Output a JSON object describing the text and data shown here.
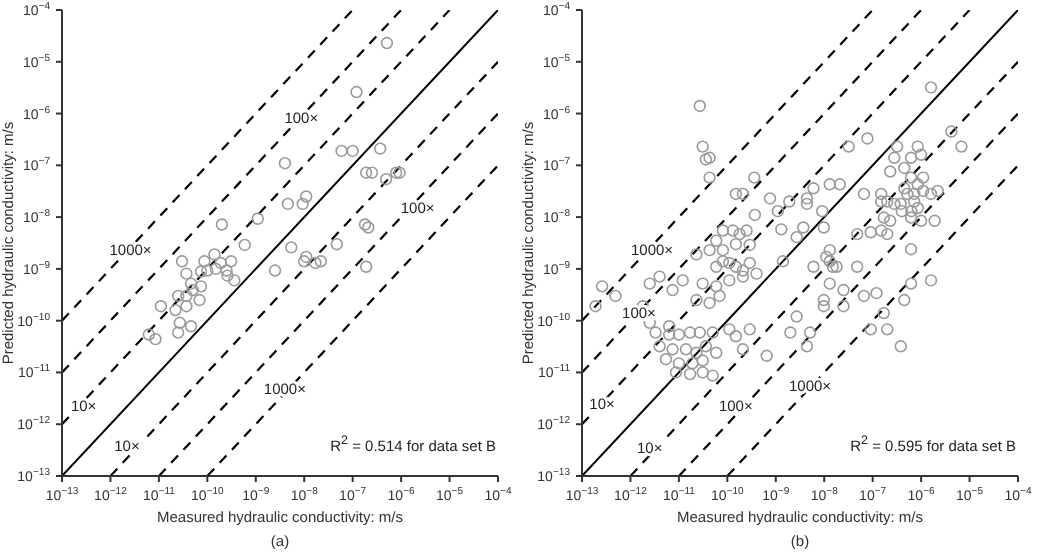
{
  "chart_data": [
    {
      "type": "scatter",
      "subtitle": "(a)",
      "xlabel": "Measured hydraulic conductivity: m/s",
      "ylabel": "Predicted hydraulic conductivity: m/s",
      "log": "xy",
      "marker": "circle",
      "xlim": [
        1e-13,
        0.0001
      ],
      "ylim": [
        1e-13,
        0.0001
      ],
      "xticks": [
        {
          "value": 1e-13,
          "label": "10$^{−13}$"
        },
        {
          "value": 1e-12,
          "label": "10$^{−12}$"
        },
        {
          "value": 1e-11,
          "label": "10$^{−11}$"
        },
        {
          "value": 1e-10,
          "label": "10$^{−10}$"
        },
        {
          "value": 1e-09,
          "label": "10$^{−9}$"
        },
        {
          "value": 1e-08,
          "label": "10$^{−8}$"
        },
        {
          "value": 1e-07,
          "label": "10$^{−7}$"
        },
        {
          "value": 1e-06,
          "label": "10$^{−6}$"
        },
        {
          "value": 1e-05,
          "label": "10$^{−5}$"
        },
        {
          "value": 0.0001,
          "label": "10$^{−4}$"
        }
      ],
      "yticks": [
        {
          "value": 1e-13,
          "label": "10$^{−13}$"
        },
        {
          "value": 1e-12,
          "label": "10$^{−12}$"
        },
        {
          "value": 1e-11,
          "label": "10$^{−11}$"
        },
        {
          "value": 1e-10,
          "label": "10$^{−10}$"
        },
        {
          "value": 1e-09,
          "label": "10$^{−9}$"
        },
        {
          "value": 1e-08,
          "label": "10$^{−8}$"
        },
        {
          "value": 1e-07,
          "label": "10$^{−7}$"
        },
        {
          "value": 1e-06,
          "label": "10$^{−6}$"
        },
        {
          "value": 1e-05,
          "label": "10$^{−5}$"
        },
        {
          "value": 0.0001,
          "label": "10$^{−4}$"
        }
      ],
      "series": [
        {
          "type": "scatter",
          "color": "#9a9a9a",
          "x": [
            5.1e-07,
            1.2e-07,
            5.9e-08,
            1e-07,
            3.7e-07,
            4e-09,
            1.9e-07,
            2.5e-07,
            4.9e-07,
            7.9e-07,
            9.3e-07,
            1.1e-08,
            4.6e-09,
            9.3e-09,
            1.1e-09,
            2e-10,
            1.8e-07,
            2.1e-07,
            4.7e-08,
            5.9e-10,
            5.4e-09,
            3e-11,
            8.7e-11,
            1.4e-10,
            1.1e-08,
            1.7e-08,
            2.2e-08,
            1.9e-07,
            2.5e-09,
            1e-10,
            2.5e-10,
            1.9e-10,
            3.1e-10,
            1e-08,
            3.7e-11,
            7.4e-11,
            1.5e-10,
            2.6e-10,
            3.6e-10,
            5e-11,
            3.7e-11,
            7.4e-11,
            4.6e-11,
            2.5e-11,
            1.1e-11,
            2.2e-11,
            3.7e-11,
            6.9e-11,
            2.7e-11,
            4.6e-11,
            2.5e-11,
            6.2e-12,
            8.5e-12
          ],
          "values": [
            2.3e-05,
            2.6e-06,
            1.9e-07,
            1.9e-07,
            2.1e-07,
            1.1e-07,
            7.2e-08,
            7.2e-08,
            5.4e-08,
            7.2e-08,
            7.2e-08,
            2.5e-08,
            1.8e-08,
            1.8e-08,
            9.3e-09,
            7.2e-09,
            7.2e-09,
            6.3e-09,
            3e-09,
            2.9e-09,
            2.6e-09,
            1.4e-09,
            1.4e-09,
            1.9e-09,
            1.7e-09,
            1.3e-09,
            1.4e-09,
            1.1e-09,
            9.3e-10,
            9.3e-10,
            9.3e-10,
            1.3e-09,
            1.4e-09,
            1.4e-09,
            8.1e-10,
            8.9e-10,
            1e-09,
            7.4e-10,
            6e-10,
            3.9e-10,
            3e-10,
            4.6e-10,
            5.2e-10,
            3e-10,
            1.9e-10,
            1.6e-10,
            1.9e-10,
            2.5e-10,
            9.1e-11,
            7.8e-11,
            5.9e-11,
            5.4e-11,
            4.4e-11
          ]
        },
        {
          "type": "line",
          "color": "#000000",
          "line_style": "solid",
          "marker": "none",
          "x": [
            1e-13,
            0.0001
          ],
          "values": [
            1e-13,
            0.0001
          ]
        },
        {
          "type": "line",
          "color": "#000000",
          "line_style": "dashed",
          "marker": "none",
          "x": [
            1e-13,
            1e-05
          ],
          "values": [
            1e-12,
            0.0001
          ]
        },
        {
          "type": "line",
          "color": "#000000",
          "line_style": "dashed",
          "marker": "none",
          "x": [
            1e-13,
            1e-06
          ],
          "values": [
            1e-11,
            0.0001
          ]
        },
        {
          "type": "line",
          "color": "#000000",
          "line_style": "dashed",
          "marker": "none",
          "x": [
            1e-13,
            1e-07
          ],
          "values": [
            1e-10,
            0.0001
          ]
        },
        {
          "type": "line",
          "color": "#000000",
          "line_style": "dashed",
          "marker": "none",
          "x": [
            1e-12,
            0.0001
          ],
          "values": [
            1e-13,
            1e-05
          ]
        },
        {
          "type": "line",
          "color": "#000000",
          "line_style": "dashed",
          "marker": "none",
          "x": [
            1e-11,
            0.0001
          ],
          "values": [
            1e-13,
            1e-06
          ]
        },
        {
          "type": "line",
          "color": "#000000",
          "line_style": "dashed",
          "marker": "none",
          "x": [
            1e-10,
            0.0001
          ],
          "values": [
            1e-13,
            1e-07
          ]
        }
      ],
      "annotations": [
        {
          "text": "100×",
          "x": 8.7e-09,
          "y": 8.5e-07
        },
        {
          "text": "100×",
          "x": 2.2e-06,
          "y": 1.5e-08
        },
        {
          "text": "1000×",
          "x": 2.6e-12,
          "y": 2.3e-09
        },
        {
          "text": "10×",
          "x": 2.8e-13,
          "y": 2.3e-12
        },
        {
          "text": "1000×",
          "x": 4e-09,
          "y": 4.8e-12
        },
        {
          "text": "10×",
          "x": 2.2e-12,
          "y": 3.8e-13
        },
        "R$^{2}$ = 0.514 for data set B"
      ]
    },
    {
      "type": "scatter",
      "subtitle": "(b)",
      "xlabel": "Measured hydraulic conductivity: m/s",
      "ylabel": "Predicted hydraulic conductivity: m/s",
      "log": "xy",
      "marker": "circle",
      "xlim": [
        1e-13,
        0.0001
      ],
      "ylim": [
        1e-13,
        0.0001
      ],
      "xticks": [
        {
          "value": 1e-13,
          "label": "10$^{−13}$"
        },
        {
          "value": 1e-12,
          "label": "10$^{−12}$"
        },
        {
          "value": 1e-11,
          "label": "10$^{−11}$"
        },
        {
          "value": 1e-10,
          "label": "10$^{−10}$"
        },
        {
          "value": 1e-09,
          "label": "10$^{−9}$"
        },
        {
          "value": 1e-08,
          "label": "10$^{−8}$"
        },
        {
          "value": 1e-07,
          "label": "10$^{−7}$"
        },
        {
          "value": 1e-06,
          "label": "10$^{−6}$"
        },
        {
          "value": 1e-05,
          "label": "10$^{−5}$"
        },
        {
          "value": 0.0001,
          "label": "10$^{−4}$"
        }
      ],
      "yticks": [
        {
          "value": 1e-13,
          "label": "10$^{−13}$"
        },
        {
          "value": 1e-12,
          "label": "10$^{−12}$"
        },
        {
          "value": 1e-11,
          "label": "10$^{−11}$"
        },
        {
          "value": 1e-10,
          "label": "10$^{−10}$"
        },
        {
          "value": 1e-09,
          "label": "10$^{−9}$"
        },
        {
          "value": 1e-08,
          "label": "10$^{−8}$"
        },
        {
          "value": 1e-07,
          "label": "10$^{−7}$"
        },
        {
          "value": 1e-06,
          "label": "10$^{−6}$"
        },
        {
          "value": 1e-05,
          "label": "10$^{−5}$"
        },
        {
          "value": 0.0001,
          "label": "10$^{−4}$"
        }
      ],
      "series": [
        {
          "type": "scatter",
          "color": "#9a9a9a",
          "x": [
            2.7e-11,
            3.1e-11,
            4.3e-11,
            3.6e-11,
            4.3e-11,
            1.6e-06,
            4.2e-06,
            6.8e-06,
            3.2e-07,
            8.5e-07,
            7.8e-08,
            3.2e-08,
            2.8e-07,
            6.2e-07,
            1e-06,
            2.3e-07,
            4.5e-07,
            1.1e-06,
            6.2e-07,
            8.5e-07,
            4.5e-07,
            5.2e-07,
            7.2e-07,
            1.1e-06,
            1.6e-06,
            2.2e-06,
            7.2e-07,
            8.5e-07,
            3.8e-07,
            2.8e-07,
            1.5e-07,
            2e-07,
            6.6e-08,
            1.5e-07,
            1.3e-08,
            2.1e-08,
            6e-09,
            4.4e-09,
            4.4e-09,
            1.9e-09,
            1.1e-09,
            7.6e-10,
            9.1e-09,
            3.6e-10,
            1.5e-10,
            2.1e-10,
            3.7e-10,
            1.3e-09,
            3.7e-09,
            9.8e-09,
            4.8e-08,
            9.1e-08,
            1.5e-07,
            2e-07,
            1.7e-07,
            2.3e-07,
            6.2e-07,
            1e-06,
            1.9e-06,
            4e-07,
            6.3e-07,
            8.1e-11,
            1.3e-10,
            1.8e-10,
            2.5e-10,
            5.9e-11,
            1.5e-10,
            2.9e-10,
            2.7e-09,
            2.3e-11,
            4.3e-11,
            8.1e-11,
            6.2e-07,
            1.3e-08,
            1.1e-08,
            6e-09,
            1.5e-08,
            5.9e-11,
            1.1e-10,
            2.1e-10,
            8.1e-11,
            1.5e-10,
            2.9e-10,
            4e-10,
            2.1e-10,
            1.1e-10,
            1.4e-09,
            1.3e-08,
            1.8e-08,
            4.8e-08,
            1.3e-08,
            2.5e-08,
            6.6e-08,
            1.2e-07,
            4.5e-07,
            1.6e-06,
            6.2e-07,
            9.8e-09,
            9.8e-09,
            2.5e-08,
            2.7e-09,
            2e-09,
            5.1e-09,
            4.4e-09,
            6.5e-10,
            1.7e-07,
            2e-07,
            9.1e-08,
            3.8e-07,
            1.9e-13,
            2.6e-13,
            4.9e-13,
            1.8e-12,
            2.5e-12,
            4e-12,
            7.4e-12,
            1.2e-11,
            2.3e-11,
            4.3e-11,
            6.9e-11,
            3.1e-11,
            5.9e-11,
            6.3e-12,
            1e-11,
            1.7e-11,
            2.7e-11,
            5e-11,
            4e-12,
            7.4e-12,
            1.4e-11,
            2.3e-11,
            3.6e-11,
            5.9e-11,
            5.4e-12,
            1e-11,
            1.9e-11,
            3.1e-11,
            8.7e-12,
            1.7e-11,
            3.1e-11,
            5e-11,
            6.3e-12,
            1.5e-10,
            2.9e-10,
            1.1e-10,
            2.1e-10,
            2.5e-12,
            3.3e-12
          ],
          "values": [
            1.4e-06,
            2.3e-07,
            1.4e-07,
            1.3e-07,
            5.8e-08,
            3.2e-06,
            4.5e-07,
            2.3e-07,
            2.3e-07,
            2.3e-07,
            3.3e-07,
            2.3e-07,
            1.4e-07,
            1.4e-07,
            1.6e-07,
            7.6e-08,
            8.9e-08,
            5.8e-08,
            5.8e-08,
            4.3e-08,
            3.6e-08,
            2.8e-08,
            2.8e-08,
            3.2e-08,
            2.8e-08,
            3.2e-08,
            2e-08,
            1.5e-08,
            1.8e-08,
            1.8e-08,
            2e-08,
            2e-08,
            2.8e-08,
            2.8e-08,
            4.3e-08,
            4.3e-08,
            3.6e-08,
            2.3e-08,
            1.8e-08,
            2e-08,
            1.3e-08,
            2.3e-08,
            1.3e-08,
            5.8e-08,
            2.8e-08,
            2.8e-08,
            1.1e-08,
            5.8e-09,
            6.3e-09,
            6.3e-09,
            4.7e-09,
            5.1e-09,
            5.5e-09,
            4.7e-09,
            9.8e-09,
            8.5e-09,
            9.8e-09,
            8.5e-09,
            8.5e-09,
            1.3e-08,
            1.3e-08,
            5.5e-09,
            5.5e-09,
            4.7e-09,
            5.5e-09,
            3.5e-09,
            3e-09,
            2.9e-09,
            4.1e-09,
            1.9e-09,
            2.3e-09,
            2.3e-09,
            2.4e-09,
            2.3e-09,
            1.7e-09,
            1.1e-09,
            1.1e-09,
            1.1e-09,
            1.3e-09,
            9.3e-10,
            1.4e-09,
            1.1e-09,
            1.3e-09,
            8.1e-10,
            7.1e-10,
            6e-10,
            1.4e-09,
            1.4e-09,
            1.1e-09,
            1.1e-09,
            5.2e-10,
            3.9e-10,
            3e-10,
            3.4e-10,
            2.5e-10,
            6e-10,
            5.2e-10,
            2.5e-10,
            1.9e-10,
            1.9e-10,
            1.2e-10,
            5.9e-11,
            5.9e-11,
            3.2e-11,
            2.1e-11,
            1.4e-10,
            6.8e-11,
            6.8e-11,
            3.2e-11,
            1.9e-10,
            4.6e-10,
            3e-10,
            1.9e-10,
            5.2e-10,
            7.1e-10,
            3.9e-10,
            6e-10,
            2.5e-10,
            2.2e-10,
            3e-10,
            5.2e-10,
            4.6e-10,
            5.4e-11,
            5.4e-11,
            5.9e-11,
            5.9e-11,
            5.9e-11,
            3.2e-11,
            2.8e-11,
            2.8e-11,
            2.4e-11,
            3.2e-11,
            2.4e-11,
            1.8e-11,
            1.5e-11,
            1.5e-11,
            1.7e-11,
            1e-11,
            9.3e-12,
            1e-11,
            8.7e-12,
            7.8e-11,
            5e-11,
            6.8e-11,
            6.8e-11,
            2.8e-11,
            9.1e-11,
            5.9e-11
          ]
        },
        {
          "type": "line",
          "color": "#000000",
          "line_style": "solid",
          "marker": "none",
          "x": [
            1e-13,
            0.0001
          ],
          "values": [
            1e-13,
            0.0001
          ]
        },
        {
          "type": "line",
          "color": "#000000",
          "line_style": "dashed",
          "marker": "none",
          "x": [
            1e-13,
            1e-05
          ],
          "values": [
            1e-12,
            0.0001
          ]
        },
        {
          "type": "line",
          "color": "#000000",
          "line_style": "dashed",
          "marker": "none",
          "x": [
            1e-13,
            1e-06
          ],
          "values": [
            1e-11,
            0.0001
          ]
        },
        {
          "type": "line",
          "color": "#000000",
          "line_style": "dashed",
          "marker": "none",
          "x": [
            1e-13,
            1e-07
          ],
          "values": [
            1e-10,
            0.0001
          ]
        },
        {
          "type": "line",
          "color": "#000000",
          "line_style": "dashed",
          "marker": "none",
          "x": [
            1e-12,
            0.0001
          ],
          "values": [
            1e-13,
            1e-05
          ]
        },
        {
          "type": "line",
          "color": "#000000",
          "line_style": "dashed",
          "marker": "none",
          "x": [
            1e-11,
            0.0001
          ],
          "values": [
            1e-13,
            1e-06
          ]
        },
        {
          "type": "line",
          "color": "#000000",
          "line_style": "dashed",
          "marker": "none",
          "x": [
            1e-10,
            0.0001
          ],
          "values": [
            1e-13,
            1e-07
          ]
        }
      ],
      "annotations": [
        {
          "text": "1000×",
          "x": 2.8e-12,
          "y": 2.4e-09
        },
        {
          "text": "100×",
          "x": 1.5e-12,
          "y": 1.4e-10
        },
        {
          "text": "10×",
          "x": 2.6e-13,
          "y": 2.5e-12
        },
        {
          "text": "1000×",
          "x": 5.1e-09,
          "y": 5.6e-12
        },
        {
          "text": "100×",
          "x": 1.5e-10,
          "y": 2.3e-12
        },
        {
          "text": "10×",
          "x": 2.5e-12,
          "y": 3.5e-13
        },
        "R$^{2}$ = 0.595 for data set B"
      ]
    }
  ]
}
